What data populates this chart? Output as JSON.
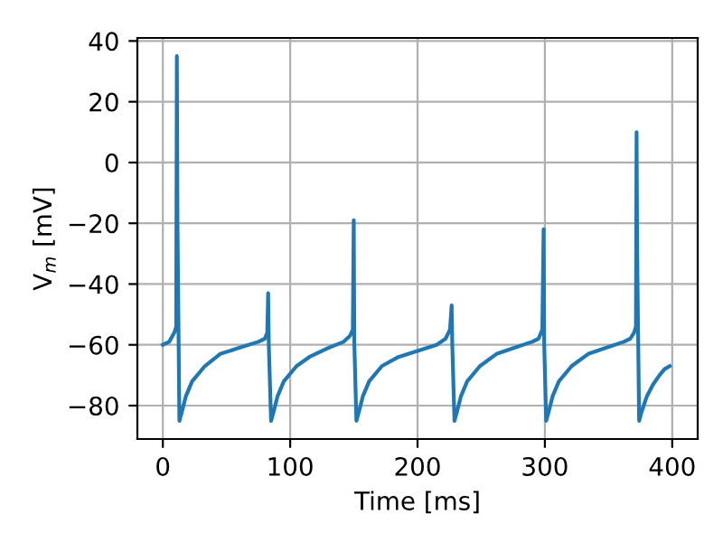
{
  "chart_data": {
    "type": "line",
    "xlabel": "Time [ms]",
    "ylabel": "V$_{m}$ [mV]",
    "x": [
      0,
      5,
      9,
      10.5,
      11,
      11.5,
      13,
      15,
      18,
      23,
      33,
      45,
      60,
      75,
      80,
      82,
      82.7,
      83.2,
      85,
      87,
      90,
      95,
      105,
      115,
      130,
      142,
      147,
      149.2,
      149.9,
      150.4,
      152,
      154,
      157,
      162,
      172,
      185,
      200,
      215,
      222,
      225.5,
      226.8,
      227.3,
      229,
      231,
      234,
      239,
      249,
      262,
      276,
      290,
      295,
      298,
      299,
      299.5,
      301,
      303,
      306,
      311,
      321,
      334,
      348,
      362,
      367,
      370,
      371.5,
      372,
      372.5,
      374,
      376,
      380,
      385,
      390,
      394,
      398
    ],
    "series": [
      {
        "color": "#1f77b4",
        "values": [
          -60,
          -59,
          -56,
          -54,
          35,
          -20,
          -85,
          -82,
          -77,
          -72,
          -67,
          -63,
          -61,
          -59,
          -58,
          -56,
          -43,
          -60,
          -85,
          -82,
          -77,
          -72,
          -67,
          -64,
          -61,
          -59,
          -57,
          -55,
          -19,
          -60,
          -85,
          -82,
          -77,
          -72,
          -67,
          -64,
          -62,
          -60,
          -58,
          -55,
          -47,
          -60,
          -85,
          -82,
          -77,
          -72,
          -67,
          -63,
          -61,
          -59,
          -58,
          -55,
          -22,
          -60,
          -85,
          -82,
          -77,
          -72,
          -67,
          -63,
          -61,
          -59,
          -58,
          -56,
          -54,
          10,
          -30,
          -85,
          -82,
          -77,
          -73,
          -70,
          -68,
          -67
        ]
      }
    ],
    "xlim": [
      -20,
      420
    ],
    "ylim": [
      -91,
      41
    ],
    "xticks": [
      0,
      100,
      200,
      300,
      400
    ],
    "yticks": [
      -80,
      -60,
      -40,
      -20,
      0,
      20,
      40
    ],
    "grid": true,
    "marker": "none",
    "line_style": "solid",
    "legend": false
  }
}
